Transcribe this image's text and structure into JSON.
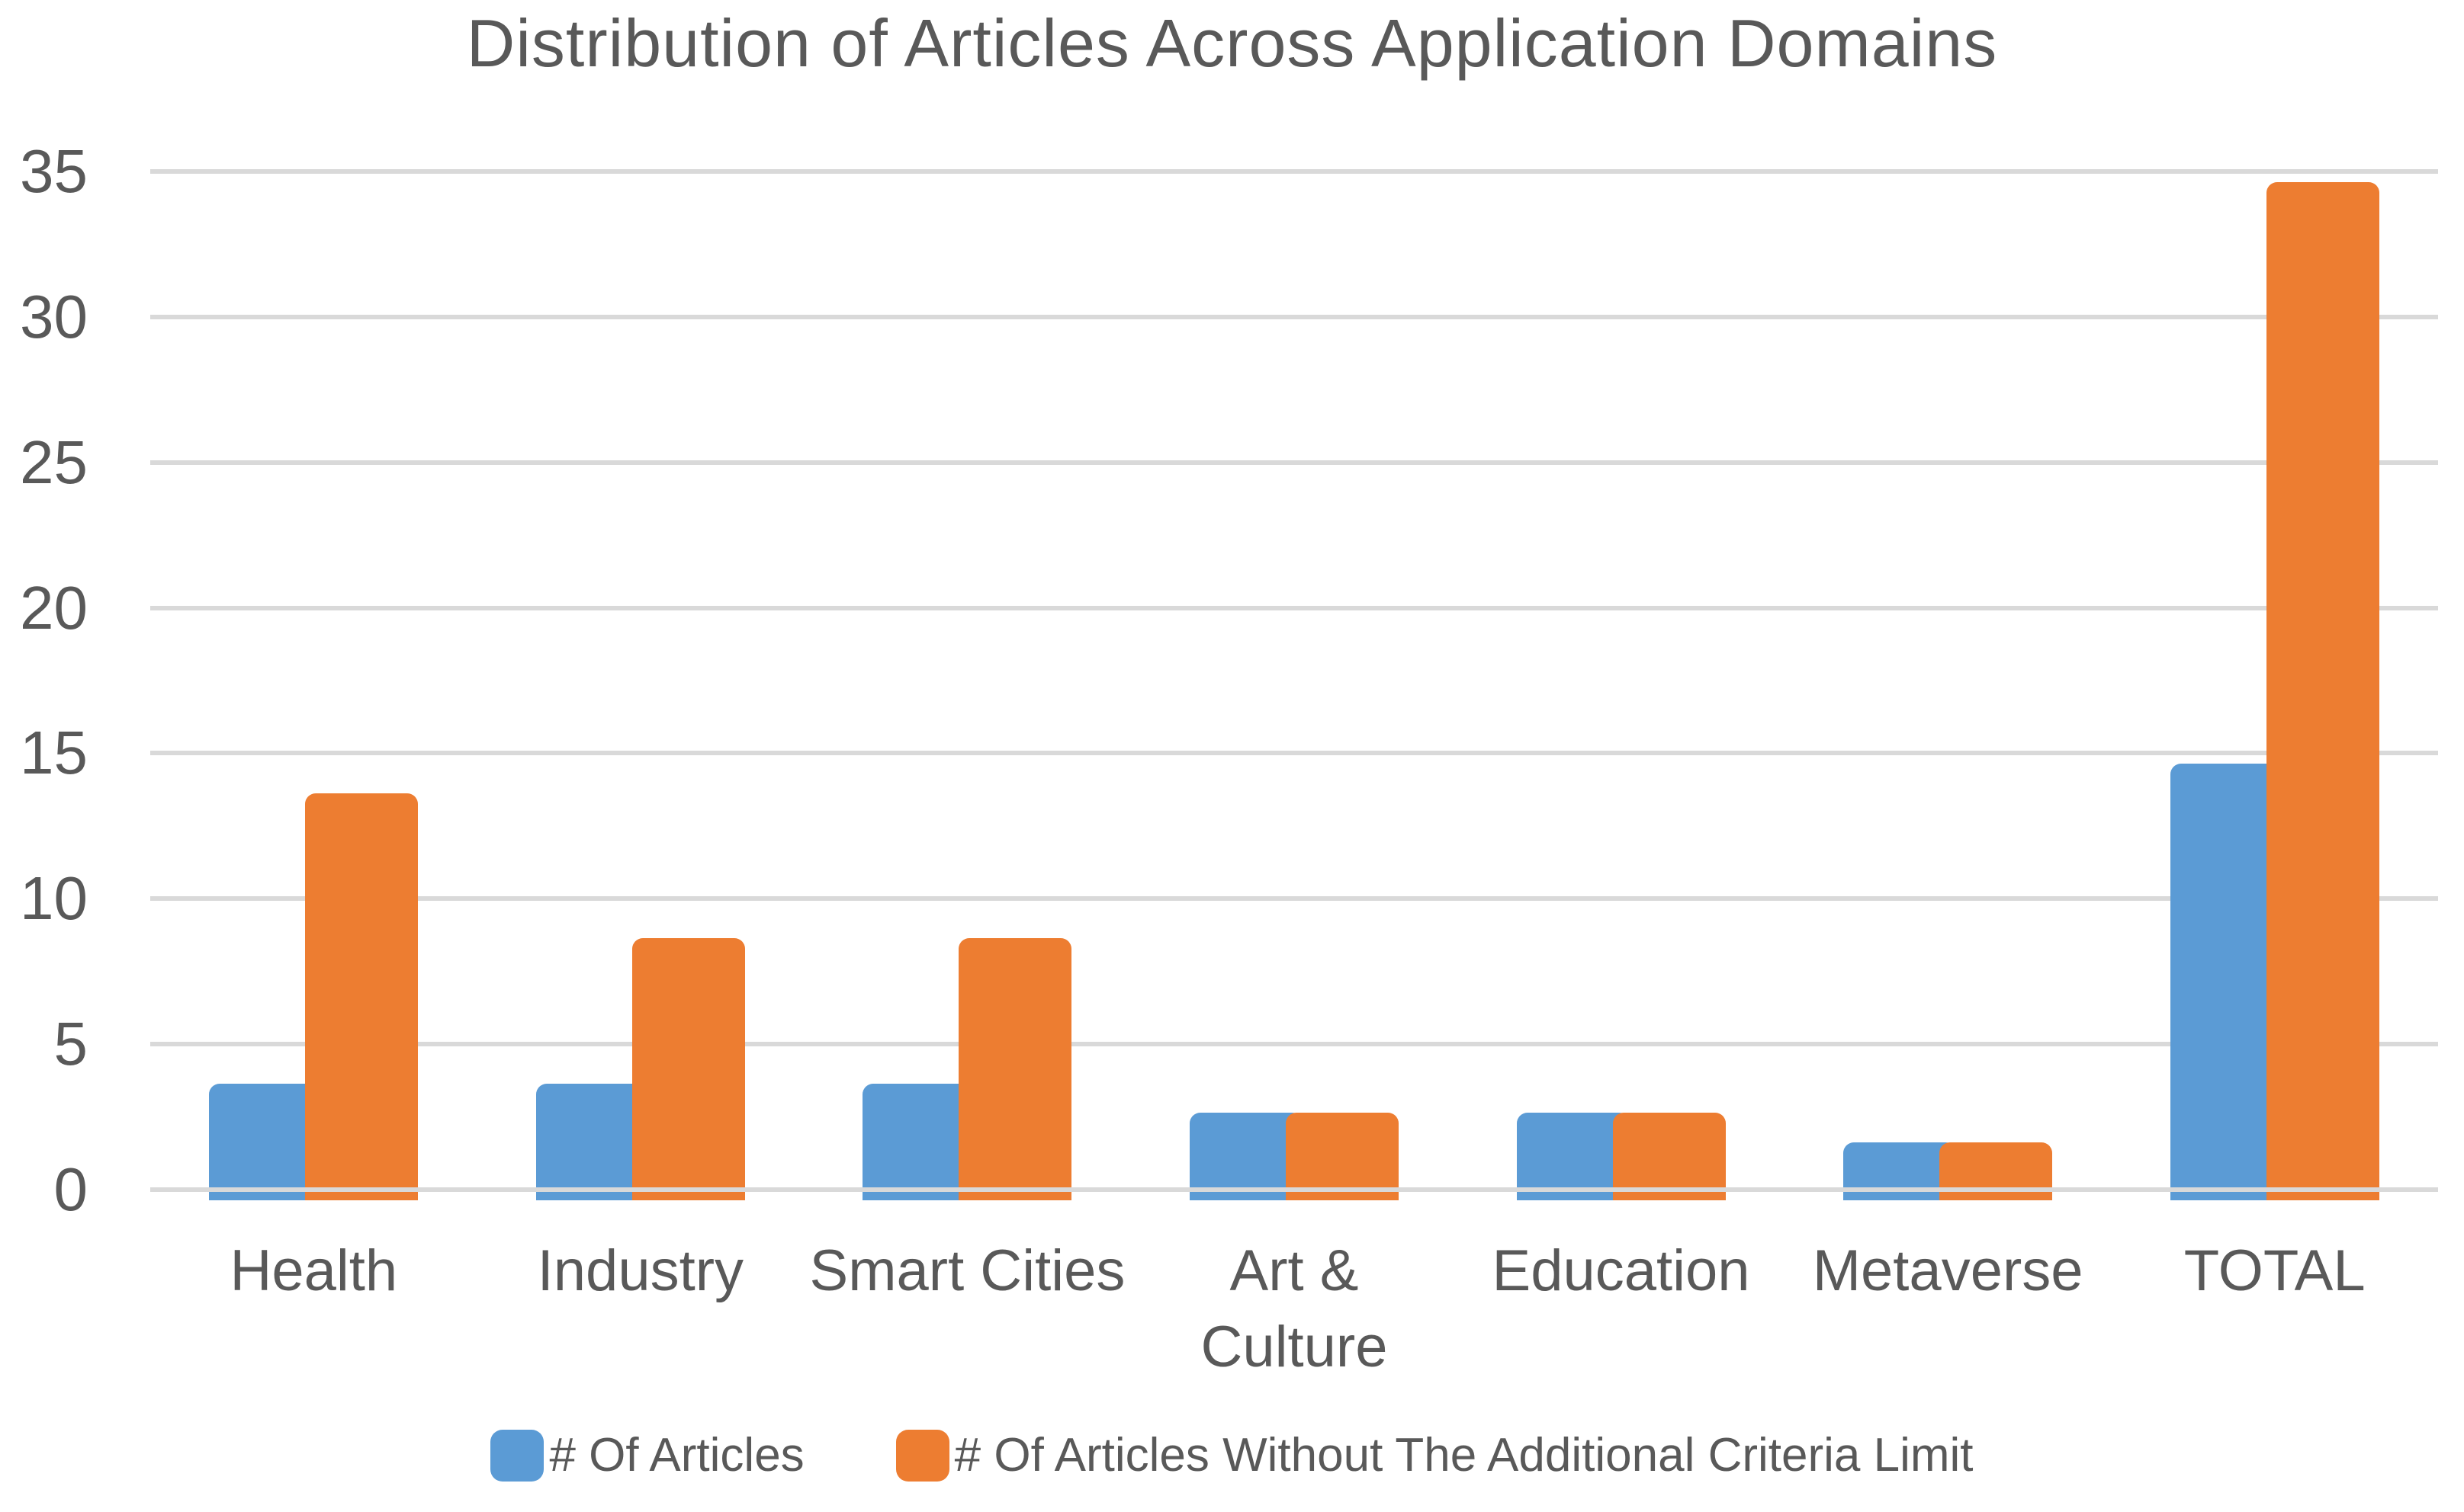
{
  "title": "Distribution of Articles Across Application Domains",
  "chart_data": {
    "type": "bar",
    "title": "Distribution of Articles Across Application Domains",
    "categories": [
      "Health",
      "Industry",
      "Smart Cities",
      "Art & Culture",
      "Education",
      "Metaverse",
      "TOTAL"
    ],
    "series": [
      {
        "name": "# Of Articles",
        "color": "#5B9BD5",
        "values": [
          4,
          4,
          4,
          3,
          3,
          2,
          15
        ]
      },
      {
        "name": "# Of Articles Without The Additional Criteria Limit",
        "color": "#ED7D31",
        "values": [
          14,
          9,
          9,
          3,
          3,
          2,
          35
        ]
      }
    ],
    "xlabel": "",
    "ylabel": "",
    "ylim": [
      0,
      35
    ],
    "yticks": [
      0,
      5,
      10,
      15,
      20,
      25,
      30,
      35
    ],
    "grid": true,
    "legend_position": "bottom"
  },
  "colors": {
    "background": "#FFFFFF",
    "text": "#595959",
    "gridline": "#D9D9D9",
    "series_blue": "#5B9BD5",
    "series_orange": "#ED7D31"
  }
}
